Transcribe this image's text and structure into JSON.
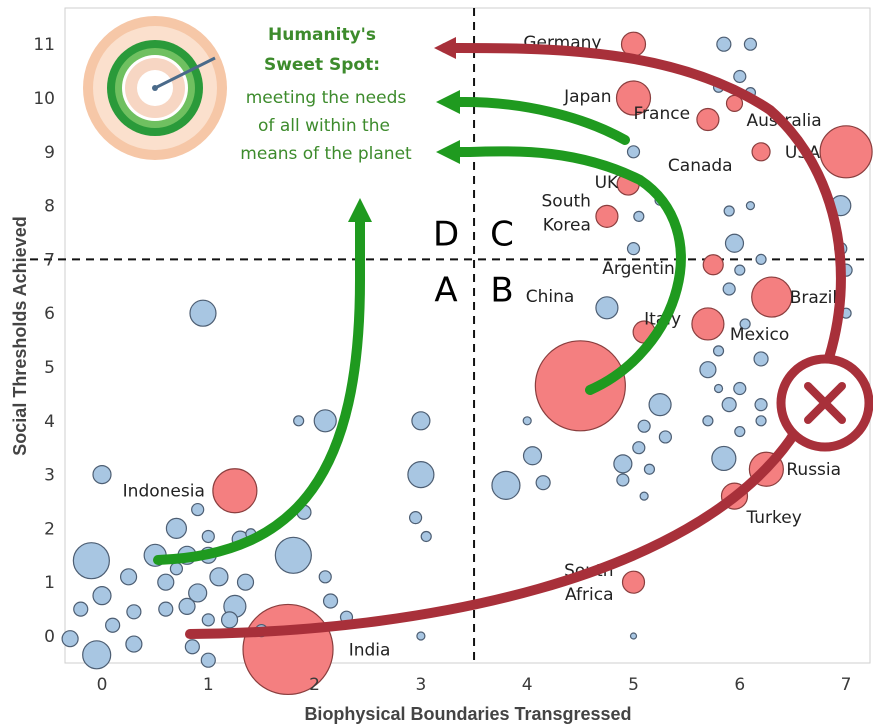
{
  "chart_data": {
    "type": "scatter",
    "xlabel": "Biophysical Boundaries Transgressed",
    "ylabel": "Social Thresholds Achieved",
    "xlim": [
      -0.3,
      7.15
    ],
    "ylim": [
      -0.7,
      11.7
    ],
    "x_ticks": [
      0,
      1,
      2,
      3,
      4,
      5,
      6,
      7
    ],
    "y_ticks": [
      0,
      1,
      2,
      3,
      4,
      5,
      6,
      7,
      8,
      9,
      10,
      11
    ],
    "threshold_x": 3.5,
    "threshold_y": 7,
    "quadrant_labels": [
      "D",
      "C",
      "A",
      "B"
    ],
    "annotation": {
      "title_line1": "Humanity's",
      "title_line2": "Sweet Spot:",
      "lines": [
        "meeting the needs",
        "of all within the",
        "means of the planet"
      ]
    },
    "labeled_countries": [
      {
        "name": "Germany",
        "x": 5.0,
        "y": 11.0
      },
      {
        "name": "Japan",
        "x": 5.0,
        "y": 10.0
      },
      {
        "name": "France",
        "x": 5.0,
        "y": 9.35
      },
      {
        "name": "Canada",
        "x": 5.7,
        "y": 8.9
      },
      {
        "name": "Australia",
        "x": 5.95,
        "y": 9.85
      },
      {
        "name": "USA",
        "x": 7.0,
        "y": 9.0
      },
      {
        "name": "UK",
        "x": 4.95,
        "y": 8.4
      },
      {
        "name": "South Korea",
        "x": 4.75,
        "y": 7.8
      },
      {
        "name": "Argentina",
        "x": 5.75,
        "y": 6.9
      },
      {
        "name": "Brazil",
        "x": 6.3,
        "y": 6.3
      },
      {
        "name": "Italy",
        "x": 5.1,
        "y": 5.6
      },
      {
        "name": "China",
        "x": 4.5,
        "y": 4.65
      },
      {
        "name": "Mexico",
        "x": 5.7,
        "y": 5.8
      },
      {
        "name": "Russia",
        "x": 6.25,
        "y": 3.1
      },
      {
        "name": "Turkey",
        "x": 5.95,
        "y": 2.55
      },
      {
        "name": "South Africa",
        "x": 5.0,
        "y": 1.0
      },
      {
        "name": "Indonesia",
        "x": 1.25,
        "y": 2.7
      },
      {
        "name": "India",
        "x": 1.7,
        "y": -0.25
      }
    ],
    "bubbles": [
      {
        "x": 1.75,
        "y": -0.25,
        "r": 45,
        "c": "red"
      },
      {
        "x": 4.5,
        "y": 4.65,
        "r": 45,
        "c": "red"
      },
      {
        "x": 7.0,
        "y": 9.0,
        "r": 26,
        "c": "red"
      },
      {
        "x": 5.0,
        "y": 10.0,
        "r": 17,
        "c": "red"
      },
      {
        "x": 6.3,
        "y": 6.3,
        "r": 20,
        "c": "red"
      },
      {
        "x": 5.7,
        "y": 5.8,
        "r": 16,
        "c": "red"
      },
      {
        "x": 6.25,
        "y": 3.1,
        "r": 17,
        "c": "red"
      },
      {
        "x": 1.25,
        "y": 2.7,
        "r": 22,
        "c": "red"
      },
      {
        "x": 5.0,
        "y": 11.0,
        "r": 12,
        "c": "red"
      },
      {
        "x": 5.7,
        "y": 9.6,
        "r": 11,
        "c": "red"
      },
      {
        "x": 6.2,
        "y": 9.0,
        "r": 9,
        "c": "red"
      },
      {
        "x": 5.95,
        "y": 9.9,
        "r": 8,
        "c": "red"
      },
      {
        "x": 4.95,
        "y": 8.4,
        "r": 11,
        "c": "red"
      },
      {
        "x": 4.75,
        "y": 7.8,
        "r": 11,
        "c": "red"
      },
      {
        "x": 5.75,
        "y": 6.9,
        "r": 10,
        "c": "red"
      },
      {
        "x": 5.1,
        "y": 5.65,
        "r": 11,
        "c": "red"
      },
      {
        "x": 5.95,
        "y": 2.6,
        "r": 13,
        "c": "red"
      },
      {
        "x": 5.0,
        "y": 1.0,
        "r": 11,
        "c": "red"
      },
      {
        "x": 0.95,
        "y": 6.0,
        "r": 13,
        "c": "blue"
      },
      {
        "x": -0.1,
        "y": 1.4,
        "r": 18,
        "c": "blue"
      },
      {
        "x": 1.8,
        "y": 1.5,
        "r": 18,
        "c": "blue"
      },
      {
        "x": -0.05,
        "y": -0.35,
        "r": 14,
        "c": "blue"
      },
      {
        "x": 3.0,
        "y": 3.0,
        "r": 13,
        "c": "blue"
      },
      {
        "x": 2.1,
        "y": 4.0,
        "r": 11,
        "c": "blue"
      },
      {
        "x": 3.0,
        "y": 4.0,
        "r": 9,
        "c": "blue"
      },
      {
        "x": 0.0,
        "y": 3.0,
        "r": 9,
        "c": "blue"
      },
      {
        "x": 0.5,
        "y": 1.5,
        "r": 11,
        "c": "blue"
      },
      {
        "x": 0.7,
        "y": 2.0,
        "r": 10,
        "c": "blue"
      },
      {
        "x": 1.25,
        "y": 0.55,
        "r": 11,
        "c": "blue"
      },
      {
        "x": 1.1,
        "y": 1.1,
        "r": 9,
        "c": "blue"
      },
      {
        "x": 0.8,
        "y": 1.5,
        "r": 9,
        "c": "blue"
      },
      {
        "x": 0.9,
        "y": 0.8,
        "r": 9,
        "c": "blue"
      },
      {
        "x": 0.6,
        "y": 1.0,
        "r": 8,
        "c": "blue"
      },
      {
        "x": 0.0,
        "y": 0.75,
        "r": 9,
        "c": "blue"
      },
      {
        "x": 0.25,
        "y": 1.1,
        "r": 8,
        "c": "blue"
      },
      {
        "x": -0.3,
        "y": -0.05,
        "r": 8,
        "c": "blue"
      },
      {
        "x": 0.3,
        "y": -0.15,
        "r": 8,
        "c": "blue"
      },
      {
        "x": 1.2,
        "y": 0.3,
        "r": 8,
        "c": "blue"
      },
      {
        "x": 1.35,
        "y": 1.0,
        "r": 8,
        "c": "blue"
      },
      {
        "x": 0.8,
        "y": 0.55,
        "r": 8,
        "c": "blue"
      },
      {
        "x": 1.0,
        "y": 1.5,
        "r": 8,
        "c": "blue"
      },
      {
        "x": 1.3,
        "y": 1.8,
        "r": 8,
        "c": "blue"
      },
      {
        "x": 0.6,
        "y": 0.5,
        "r": 7,
        "c": "blue"
      },
      {
        "x": 0.85,
        "y": -0.2,
        "r": 7,
        "c": "blue"
      },
      {
        "x": 1.0,
        "y": -0.45,
        "r": 7,
        "c": "blue"
      },
      {
        "x": 0.1,
        "y": 0.2,
        "r": 7,
        "c": "blue"
      },
      {
        "x": 0.3,
        "y": 0.45,
        "r": 7,
        "c": "blue"
      },
      {
        "x": -0.2,
        "y": 0.5,
        "r": 7,
        "c": "blue"
      },
      {
        "x": 0.7,
        "y": 1.25,
        "r": 6,
        "c": "blue"
      },
      {
        "x": 1.0,
        "y": 0.3,
        "r": 6,
        "c": "blue"
      },
      {
        "x": 1.0,
        "y": 1.85,
        "r": 6,
        "c": "blue"
      },
      {
        "x": 1.5,
        "y": 0.1,
        "r": 6,
        "c": "blue"
      },
      {
        "x": 2.15,
        "y": 0.65,
        "r": 7,
        "c": "blue"
      },
      {
        "x": 2.1,
        "y": 1.1,
        "r": 6,
        "c": "blue"
      },
      {
        "x": 1.9,
        "y": 2.3,
        "r": 7,
        "c": "blue"
      },
      {
        "x": 2.3,
        "y": 0.35,
        "r": 6,
        "c": "blue"
      },
      {
        "x": 1.85,
        "y": 4.0,
        "r": 5,
        "c": "blue"
      },
      {
        "x": 2.95,
        "y": 2.2,
        "r": 6,
        "c": "blue"
      },
      {
        "x": 3.05,
        "y": 1.85,
        "r": 5,
        "c": "blue"
      },
      {
        "x": 3.0,
        "y": 0.0,
        "r": 4,
        "c": "blue"
      },
      {
        "x": 0.9,
        "y": 2.35,
        "r": 6,
        "c": "blue"
      },
      {
        "x": 1.4,
        "y": 1.9,
        "r": 5,
        "c": "blue"
      },
      {
        "x": 3.8,
        "y": 2.8,
        "r": 14,
        "c": "blue"
      },
      {
        "x": 4.05,
        "y": 3.35,
        "r": 9,
        "c": "blue"
      },
      {
        "x": 4.15,
        "y": 2.85,
        "r": 7,
        "c": "blue"
      },
      {
        "x": 4.0,
        "y": 4.0,
        "r": 4,
        "c": "blue"
      },
      {
        "x": 4.75,
        "y": 6.1,
        "r": 11,
        "c": "blue"
      },
      {
        "x": 4.9,
        "y": 3.2,
        "r": 9,
        "c": "blue"
      },
      {
        "x": 4.9,
        "y": 2.9,
        "r": 6,
        "c": "blue"
      },
      {
        "x": 5.05,
        "y": 3.5,
        "r": 6,
        "c": "blue"
      },
      {
        "x": 5.15,
        "y": 3.1,
        "r": 5,
        "c": "blue"
      },
      {
        "x": 5.1,
        "y": 3.9,
        "r": 6,
        "c": "blue"
      },
      {
        "x": 5.25,
        "y": 4.3,
        "r": 11,
        "c": "blue"
      },
      {
        "x": 5.3,
        "y": 3.7,
        "r": 6,
        "c": "blue"
      },
      {
        "x": 5.0,
        "y": 9.0,
        "r": 6,
        "c": "blue"
      },
      {
        "x": 5.0,
        "y": 7.2,
        "r": 6,
        "c": "blue"
      },
      {
        "x": 5.05,
        "y": 7.8,
        "r": 5,
        "c": "blue"
      },
      {
        "x": 5.25,
        "y": 8.1,
        "r": 5,
        "c": "blue"
      },
      {
        "x": 5.85,
        "y": 11.0,
        "r": 7,
        "c": "blue"
      },
      {
        "x": 6.1,
        "y": 11.0,
        "r": 6,
        "c": "blue"
      },
      {
        "x": 6.0,
        "y": 10.4,
        "r": 6,
        "c": "blue"
      },
      {
        "x": 5.8,
        "y": 10.2,
        "r": 5,
        "c": "blue"
      },
      {
        "x": 6.1,
        "y": 10.1,
        "r": 5,
        "c": "blue"
      },
      {
        "x": 5.95,
        "y": 7.3,
        "r": 9,
        "c": "blue"
      },
      {
        "x": 5.9,
        "y": 7.9,
        "r": 5,
        "c": "blue"
      },
      {
        "x": 6.1,
        "y": 8.0,
        "r": 4,
        "c": "blue"
      },
      {
        "x": 5.9,
        "y": 6.45,
        "r": 6,
        "c": "blue"
      },
      {
        "x": 6.0,
        "y": 6.8,
        "r": 5,
        "c": "blue"
      },
      {
        "x": 5.7,
        "y": 4.95,
        "r": 8,
        "c": "blue"
      },
      {
        "x": 5.9,
        "y": 4.3,
        "r": 7,
        "c": "blue"
      },
      {
        "x": 5.85,
        "y": 3.3,
        "r": 12,
        "c": "blue"
      },
      {
        "x": 6.0,
        "y": 4.6,
        "r": 6,
        "c": "blue"
      },
      {
        "x": 6.2,
        "y": 5.15,
        "r": 7,
        "c": "blue"
      },
      {
        "x": 6.05,
        "y": 5.8,
        "r": 5,
        "c": "blue"
      },
      {
        "x": 6.2,
        "y": 4.3,
        "r": 6,
        "c": "blue"
      },
      {
        "x": 6.2,
        "y": 4.0,
        "r": 5,
        "c": "blue"
      },
      {
        "x": 6.0,
        "y": 3.8,
        "r": 5,
        "c": "blue"
      },
      {
        "x": 5.7,
        "y": 4.0,
        "r": 5,
        "c": "blue"
      },
      {
        "x": 6.95,
        "y": 8.0,
        "r": 10,
        "c": "blue"
      },
      {
        "x": 6.95,
        "y": 7.2,
        "r": 6,
        "c": "blue"
      },
      {
        "x": 7.0,
        "y": 6.8,
        "r": 6,
        "c": "blue"
      },
      {
        "x": 7.0,
        "y": 6.0,
        "r": 5,
        "c": "blue"
      },
      {
        "x": 5.8,
        "y": 5.3,
        "r": 5,
        "c": "blue"
      },
      {
        "x": 5.8,
        "y": 4.6,
        "r": 4,
        "c": "blue"
      },
      {
        "x": 6.2,
        "y": 7.0,
        "r": 5,
        "c": "blue"
      },
      {
        "x": 5.0,
        "y": 0.0,
        "r": 3,
        "c": "blue"
      },
      {
        "x": 5.1,
        "y": 2.6,
        "r": 4,
        "c": "blue"
      }
    ]
  }
}
